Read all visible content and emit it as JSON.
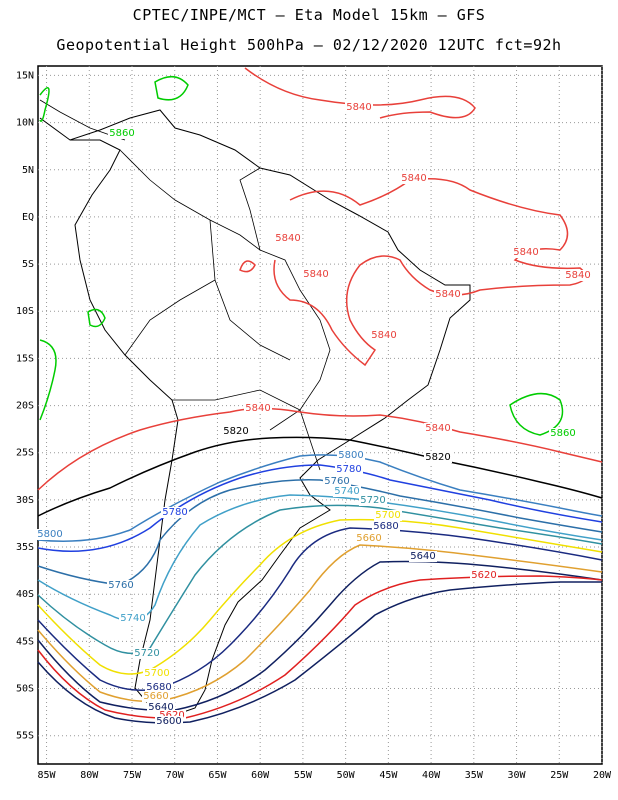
{
  "title_line1": "CPTEC/INPE/MCT –  Eta Model 15km – GFS",
  "title_line2": "Geopotential Height 500hPa – 02/12/2020 12UTC fct=92h",
  "map": {
    "lon_range": [
      -86,
      -20
    ],
    "lat_range": [
      -58,
      16
    ],
    "lon_ticks": [
      "85W",
      "80W",
      "75W",
      "70W",
      "65W",
      "60W",
      "55W",
      "50W",
      "45W",
      "40W",
      "35W",
      "30W",
      "25W",
      "20W"
    ],
    "lat_ticks": [
      "15N",
      "10N",
      "5N",
      "EQ",
      "5S",
      "10S",
      "15S",
      "20S",
      "25S",
      "30S",
      "35S",
      "40S",
      "45S",
      "50S",
      "55S"
    ],
    "grid": true
  },
  "contours": [
    {
      "value": "5860",
      "color": "#00cc00"
    },
    {
      "value": "5840",
      "color": "#e8403a"
    },
    {
      "value": "5820",
      "color": "#000000"
    },
    {
      "value": "5800",
      "color": "#3a7fc0"
    },
    {
      "value": "5780",
      "color": "#2040e0"
    },
    {
      "value": "5760",
      "color": "#2c6fa8"
    },
    {
      "value": "5740",
      "color": "#40a0c8"
    },
    {
      "value": "5720",
      "color": "#3090a0"
    },
    {
      "value": "5700",
      "color": "#f0e000"
    },
    {
      "value": "5680",
      "color": "#1a2a80"
    },
    {
      "value": "5660",
      "color": "#e0a030"
    },
    {
      "value": "5640",
      "color": "#102060"
    },
    {
      "value": "5620",
      "color": "#e02020"
    },
    {
      "value": "5600",
      "color": "#102060"
    }
  ]
}
